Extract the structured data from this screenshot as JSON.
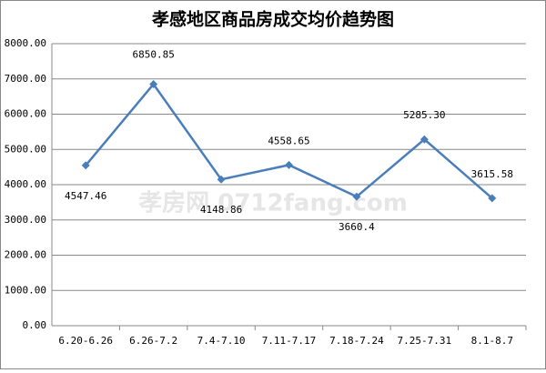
{
  "chart_data": {
    "type": "line",
    "title": "孝感地区商品房成交均价趋势图",
    "watermark": "孝房网 0712fang.com",
    "categories": [
      "6.20-6.26",
      "6.26-7.2",
      "7.4-7.10",
      "7.11-7.17",
      "7.18-7.24",
      "7.25-7.31",
      "8.1-8.7"
    ],
    "values": [
      4547.46,
      6850.85,
      4148.86,
      4558.65,
      3660.4,
      5285.3,
      3615.58
    ],
    "value_labels": [
      "4547.46",
      "6850.85",
      "4148.86",
      "4558.65",
      "3660.4",
      "5285.30",
      "3615.58"
    ],
    "color": "#4a7ebb",
    "ylim": [
      0,
      8000
    ],
    "yticks": [
      {
        "value": 0,
        "label": "0.00"
      },
      {
        "value": 1000,
        "label": "1000.00"
      },
      {
        "value": 2000,
        "label": "2000.00"
      },
      {
        "value": 3000,
        "label": "3000.00"
      },
      {
        "value": 4000,
        "label": "4000.00"
      },
      {
        "value": 5000,
        "label": "5000.00"
      },
      {
        "value": 6000,
        "label": "6000.00"
      },
      {
        "value": 7000,
        "label": "7000.00"
      },
      {
        "value": 8000,
        "label": "8000.00"
      }
    ],
    "grid": true
  }
}
